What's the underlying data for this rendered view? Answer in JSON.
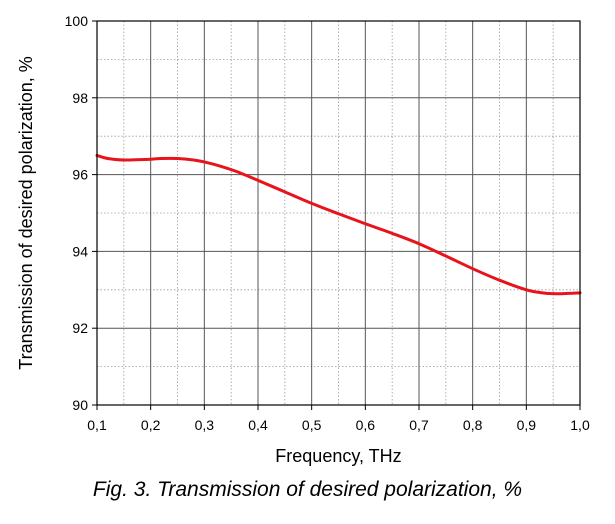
{
  "caption": "Fig. 3. Transmission of desired polarization, %",
  "chart_data": {
    "type": "line",
    "xlabel": "Frequency, THz",
    "ylabel": "Transmission of desired polarization, %",
    "xlim": [
      0.1,
      1.0
    ],
    "ylim": [
      90,
      100
    ],
    "x_ticks": [
      "0,1",
      "0,2",
      "0,3",
      "0,4",
      "0,5",
      "0,6",
      "0,7",
      "0,8",
      "0,9",
      "1,0"
    ],
    "y_ticks": [
      "90",
      "92",
      "94",
      "96",
      "98",
      "100"
    ],
    "grid": true,
    "series": [
      {
        "color": "#e8141c",
        "x": [
          0.1,
          0.12,
          0.15,
          0.18,
          0.2,
          0.22,
          0.25,
          0.28,
          0.3,
          0.33,
          0.36,
          0.4,
          0.45,
          0.5,
          0.55,
          0.6,
          0.65,
          0.7,
          0.75,
          0.8,
          0.85,
          0.9,
          0.93,
          0.95,
          0.97,
          1.0
        ],
        "y": [
          96.5,
          96.42,
          96.38,
          96.39,
          96.4,
          96.42,
          96.42,
          96.38,
          96.33,
          96.22,
          96.08,
          95.85,
          95.55,
          95.25,
          94.98,
          94.72,
          94.47,
          94.2,
          93.88,
          93.55,
          93.25,
          93.0,
          92.92,
          92.9,
          92.9,
          92.92
        ]
      }
    ]
  }
}
